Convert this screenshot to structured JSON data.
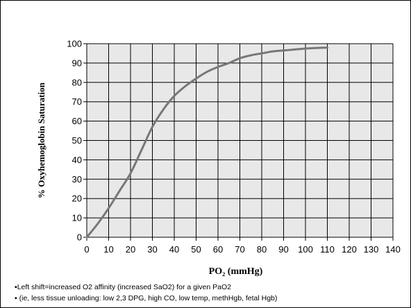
{
  "chart_data": {
    "type": "line",
    "title": "",
    "xlabel": "PO₂ (mmHg)",
    "ylabel": "% Oxyhemoglobin Saturation",
    "xlim": [
      0,
      140
    ],
    "ylim": [
      0,
      100
    ],
    "xticks": [
      "0",
      "10",
      "20",
      "30",
      "40",
      "50",
      "60",
      "70",
      "80",
      "90",
      "100",
      "110",
      "120",
      "130",
      "140"
    ],
    "yticks": [
      "0",
      "10",
      "20",
      "30",
      "40",
      "50",
      "60",
      "70",
      "80",
      "90",
      "100"
    ],
    "grid": true,
    "legend": "none",
    "plot_background": "#e8e8e8",
    "grid_color": "#000000",
    "series": [
      {
        "color": "#777777",
        "x": [
          0,
          5,
          10,
          15,
          20,
          25,
          30,
          35,
          40,
          45,
          50,
          55,
          60,
          65,
          70,
          75,
          80,
          85,
          90,
          95,
          100,
          105,
          110
        ],
        "y": [
          0,
          7,
          15,
          24,
          33,
          45,
          57,
          66,
          73,
          78,
          82,
          85.5,
          88,
          90,
          92.5,
          94,
          95,
          96,
          96.5,
          97,
          97.5,
          97.8,
          98
        ]
      }
    ]
  },
  "notes": [
    "▪Left shift=increased O2 affinity (increased SaO2) for a given PaO2",
    "▪ (ie, less tissue unloading: low 2,3 DPG, high CO, low temp, methHgb, fetal Hgb)"
  ]
}
